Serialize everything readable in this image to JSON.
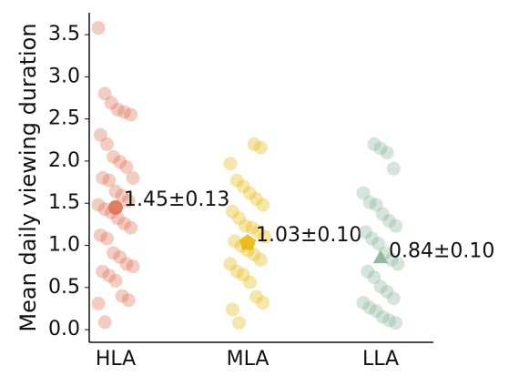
{
  "chart_data": {
    "type": "strip",
    "ylabel": "Mean daily viewing duration",
    "categories": [
      "HLA",
      "MLA",
      "LLA"
    ],
    "markers": [
      "circle",
      "pentagon",
      "triangle"
    ],
    "series": [
      {
        "name": "HLA",
        "color": "#e0704f",
        "values": [
          3.58,
          2.8,
          2.69,
          2.61,
          2.58,
          2.55,
          2.31,
          2.2,
          2.05,
          1.99,
          1.93,
          1.8,
          1.8,
          1.77,
          1.64,
          1.59,
          1.53,
          1.48,
          1.43,
          1.39,
          1.32,
          1.26,
          1.21,
          1.12,
          1.08,
          0.91,
          0.86,
          0.78,
          0.75,
          0.69,
          0.64,
          0.58,
          0.4,
          0.35,
          0.31,
          0.09
        ]
      },
      {
        "name": "MLA",
        "color": "#e8b80c",
        "values": [
          2.2,
          2.16,
          1.97,
          1.77,
          1.7,
          1.62,
          1.55,
          1.48,
          1.4,
          1.32,
          1.23,
          1.21,
          1.16,
          1.1,
          1.05,
          0.99,
          0.94,
          0.89,
          0.83,
          0.78,
          0.69,
          0.65,
          0.56,
          0.39,
          0.32,
          0.24,
          0.08
        ]
      },
      {
        "name": "LLA",
        "color": "#86b597",
        "values": [
          2.2,
          2.15,
          2.1,
          1.91,
          1.62,
          1.51,
          1.48,
          1.37,
          1.29,
          1.23,
          1.16,
          1.08,
          1.02,
          0.91,
          0.83,
          0.78,
          0.69,
          0.62,
          0.51,
          0.45,
          0.37,
          0.32,
          0.26,
          0.22,
          0.15,
          0.11,
          0.08
        ]
      }
    ],
    "means": [
      1.45,
      1.03,
      0.84
    ],
    "mean_labels": [
      "1.45±0.13",
      "1.03±0.10",
      "0.84±0.10"
    ],
    "ylim": [
      -0.15,
      3.76
    ],
    "yticks": [
      {
        "value": 0,
        "label": "0.0"
      },
      0.5,
      {
        "value": 1,
        "label": "1.0"
      },
      1.5,
      {
        "value": 2,
        "label": "2.0"
      },
      2.5,
      {
        "value": 3,
        "label": "3.0"
      },
      3.5
    ]
  }
}
